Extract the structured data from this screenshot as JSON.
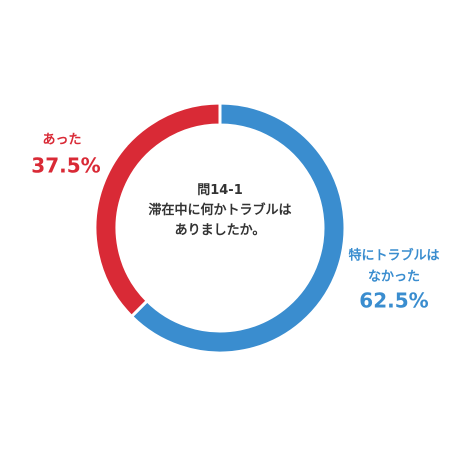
{
  "chart_data": {
    "type": "donut",
    "title": "問14-1\n滞在中に何かトラブルは\nありましたか。",
    "categories": [
      "特にトラブルは\nなかった",
      "あった"
    ],
    "values": [
      62.5,
      37.5
    ],
    "value_labels": [
      "62.5%",
      "37.5%"
    ],
    "colors": [
      "#3a8dcf",
      "#d92a36"
    ]
  }
}
